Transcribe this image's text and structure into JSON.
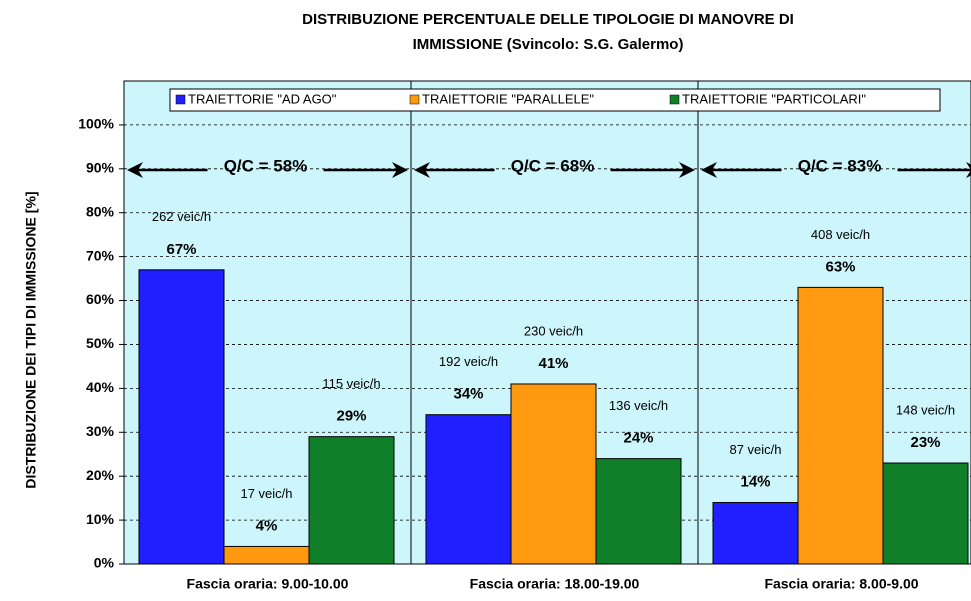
{
  "chart_data": {
    "type": "bar",
    "title_lines": [
      "DISTRIBUZIONE PERCENTUALE DELLE TIPOLOGIE DI MANOVRE DI",
      "IMMISSIONE (Svincolo: S.G. Galermo)"
    ],
    "y_label": "DISTRIBUZIONE DEI TIPI DI IMMISSIONE [%]",
    "categories": [
      "Fascia oraria: 9.00-10.00",
      "Fascia oraria: 18.00-19.00",
      "Fascia oraria: 8.00-9.00"
    ],
    "annotations": [
      "Q/C = 58%",
      "Q/C = 68%",
      "Q/C = 83%"
    ],
    "series": [
      {
        "name": "TRAIETTORIE \"AD AGO\"",
        "color": "#1f1fff",
        "values": [
          67,
          34,
          14
        ],
        "value_labels": [
          "67%",
          "34%",
          "14%"
        ],
        "flow_labels": [
          "262 veic/h",
          "192 veic/h",
          "87 veic/h"
        ]
      },
      {
        "name": "TRAIETTORIE \"PARALLELE\"",
        "color": "#ff9a10",
        "values": [
          4,
          41,
          63
        ],
        "value_labels": [
          "4%",
          "41%",
          "63%"
        ],
        "flow_labels": [
          "17 veic/h",
          "230 veic/h",
          "408 veic/h"
        ]
      },
      {
        "name": "TRAIETTORIE \"PARTICOLARI\"",
        "color": "#0f7f2a",
        "values": [
          29,
          24,
          23
        ],
        "value_labels": [
          "29%",
          "24%",
          "23%"
        ],
        "flow_labels": [
          "115 veic/h",
          "136 veic/h",
          "148 veic/h"
        ]
      }
    ],
    "ylim": [
      0,
      110
    ],
    "yticks": [
      {
        "value": 0,
        "label": "0%"
      },
      {
        "value": 10,
        "label": "10%"
      },
      {
        "value": 20,
        "label": "20%"
      },
      {
        "value": 30,
        "label": "30%"
      },
      {
        "value": 40,
        "label": "40%"
      },
      {
        "value": 50,
        "label": "50%"
      },
      {
        "value": 60,
        "label": "60%"
      },
      {
        "value": 70,
        "label": "70%"
      },
      {
        "value": 80,
        "label": "80%"
      },
      {
        "value": 90,
        "label": "90%"
      },
      {
        "value": 100,
        "label": "100%"
      }
    ],
    "grid": true,
    "legend": "top"
  }
}
